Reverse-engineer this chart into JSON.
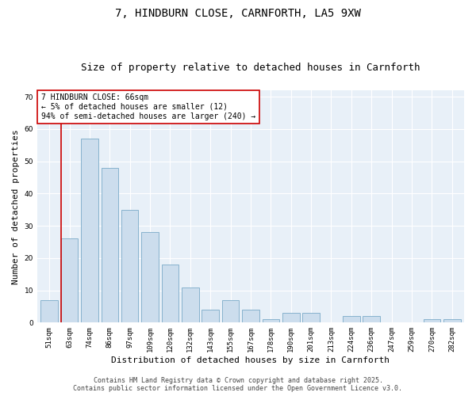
{
  "title_line1": "7, HINDBURN CLOSE, CARNFORTH, LA5 9XW",
  "title_line2": "Size of property relative to detached houses in Carnforth",
  "xlabel": "Distribution of detached houses by size in Carnforth",
  "ylabel": "Number of detached properties",
  "categories": [
    "51sqm",
    "63sqm",
    "74sqm",
    "86sqm",
    "97sqm",
    "109sqm",
    "120sqm",
    "132sqm",
    "143sqm",
    "155sqm",
    "167sqm",
    "178sqm",
    "190sqm",
    "201sqm",
    "213sqm",
    "224sqm",
    "236sqm",
    "247sqm",
    "259sqm",
    "270sqm",
    "282sqm"
  ],
  "values": [
    7,
    26,
    57,
    48,
    35,
    28,
    18,
    11,
    4,
    7,
    4,
    1,
    3,
    3,
    0,
    2,
    2,
    0,
    0,
    1,
    1
  ],
  "bar_color": "#ccdded",
  "bar_edge_color": "#7aaac8",
  "highlight_bar_index": 1,
  "highlight_line_color": "#cc0000",
  "ylim": [
    0,
    72
  ],
  "yticks": [
    0,
    10,
    20,
    30,
    40,
    50,
    60,
    70
  ],
  "annotation_text": "7 HINDBURN CLOSE: 66sqm\n← 5% of detached houses are smaller (12)\n94% of semi-detached houses are larger (240) →",
  "annotation_box_color": "#ffffff",
  "annotation_box_edge_color": "#cc0000",
  "footer_line1": "Contains HM Land Registry data © Crown copyright and database right 2025.",
  "footer_line2": "Contains public sector information licensed under the Open Government Licence v3.0.",
  "bg_color": "#ffffff",
  "plot_bg_color": "#e8f0f8",
  "grid_color": "#ffffff",
  "title_fontsize": 10,
  "subtitle_fontsize": 9,
  "tick_fontsize": 6.5,
  "label_fontsize": 8,
  "annotation_fontsize": 7,
  "footer_fontsize": 6
}
